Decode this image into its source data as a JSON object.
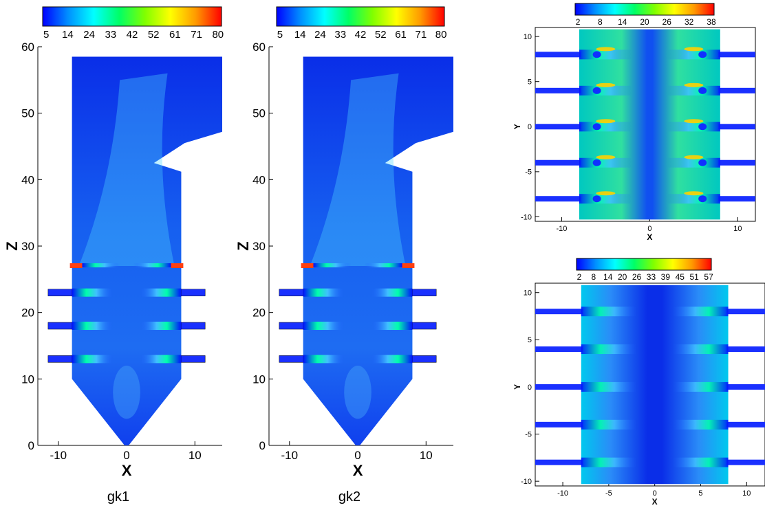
{
  "colors": {
    "scale": [
      "#0000ff",
      "#0090ff",
      "#00ffff",
      "#00ff66",
      "#80ff00",
      "#ffff00",
      "#ff9900",
      "#ff0000"
    ],
    "background": "#ffffff"
  },
  "chart_data": [
    {
      "type": "heatmap",
      "caption": "gk1",
      "xlabel": "X",
      "ylabel": "Z",
      "xlim": [
        -13,
        14
      ],
      "ylim": [
        0,
        60
      ],
      "xticks": [
        "-10",
        "0",
        "10"
      ],
      "yticks": [
        "0",
        "10",
        "20",
        "30",
        "40",
        "50",
        "60"
      ],
      "colorbar": {
        "labels": [
          "5",
          "14",
          "24",
          "33",
          "42",
          "52",
          "61",
          "71",
          "80"
        ],
        "min": 5,
        "max": 80
      },
      "burner_rows_z": [
        13,
        18,
        23,
        27
      ],
      "grid": false
    },
    {
      "type": "heatmap",
      "caption": "gk2",
      "xlabel": "X",
      "ylabel": "Z",
      "xlim": [
        -13,
        14
      ],
      "ylim": [
        0,
        60
      ],
      "xticks": [
        "-10",
        "0",
        "10"
      ],
      "yticks": [
        "0",
        "10",
        "20",
        "30",
        "40",
        "50",
        "60"
      ],
      "colorbar": {
        "labels": [
          "5",
          "14",
          "24",
          "33",
          "42",
          "52",
          "61",
          "71",
          "80"
        ],
        "min": 5,
        "max": 80
      },
      "burner_rows_z": [
        13,
        18,
        23,
        27
      ],
      "grid": false
    },
    {
      "type": "heatmap",
      "xlabel": "X",
      "ylabel": "Y",
      "xlim": [
        -13,
        12
      ],
      "ylim": [
        -10.5,
        11
      ],
      "xticks": [
        "-10",
        "0",
        "10"
      ],
      "yticks": [
        "-10",
        "-5",
        "0",
        "5",
        "10"
      ],
      "colorbar": {
        "labels": [
          "2",
          "8",
          "14",
          "20",
          "26",
          "32",
          "38"
        ],
        "min": 2,
        "max": 38
      },
      "burner_rows_y": [
        -8,
        -4,
        0,
        4,
        8
      ],
      "grid": false
    },
    {
      "type": "heatmap",
      "xlabel": "X",
      "ylabel": "Y",
      "xlim": [
        -13,
        12
      ],
      "ylim": [
        -10.5,
        11
      ],
      "xticks": [
        "-10",
        "-5",
        "0",
        "5",
        "10"
      ],
      "yticks": [
        "-10",
        "-5",
        "0",
        "5",
        "10"
      ],
      "colorbar": {
        "labels": [
          "2",
          "8",
          "14",
          "20",
          "26",
          "33",
          "39",
          "45",
          "51",
          "57"
        ],
        "min": 2,
        "max": 57
      },
      "burner_rows_y": [
        -8,
        -4,
        0,
        4,
        8
      ],
      "grid": false
    }
  ]
}
